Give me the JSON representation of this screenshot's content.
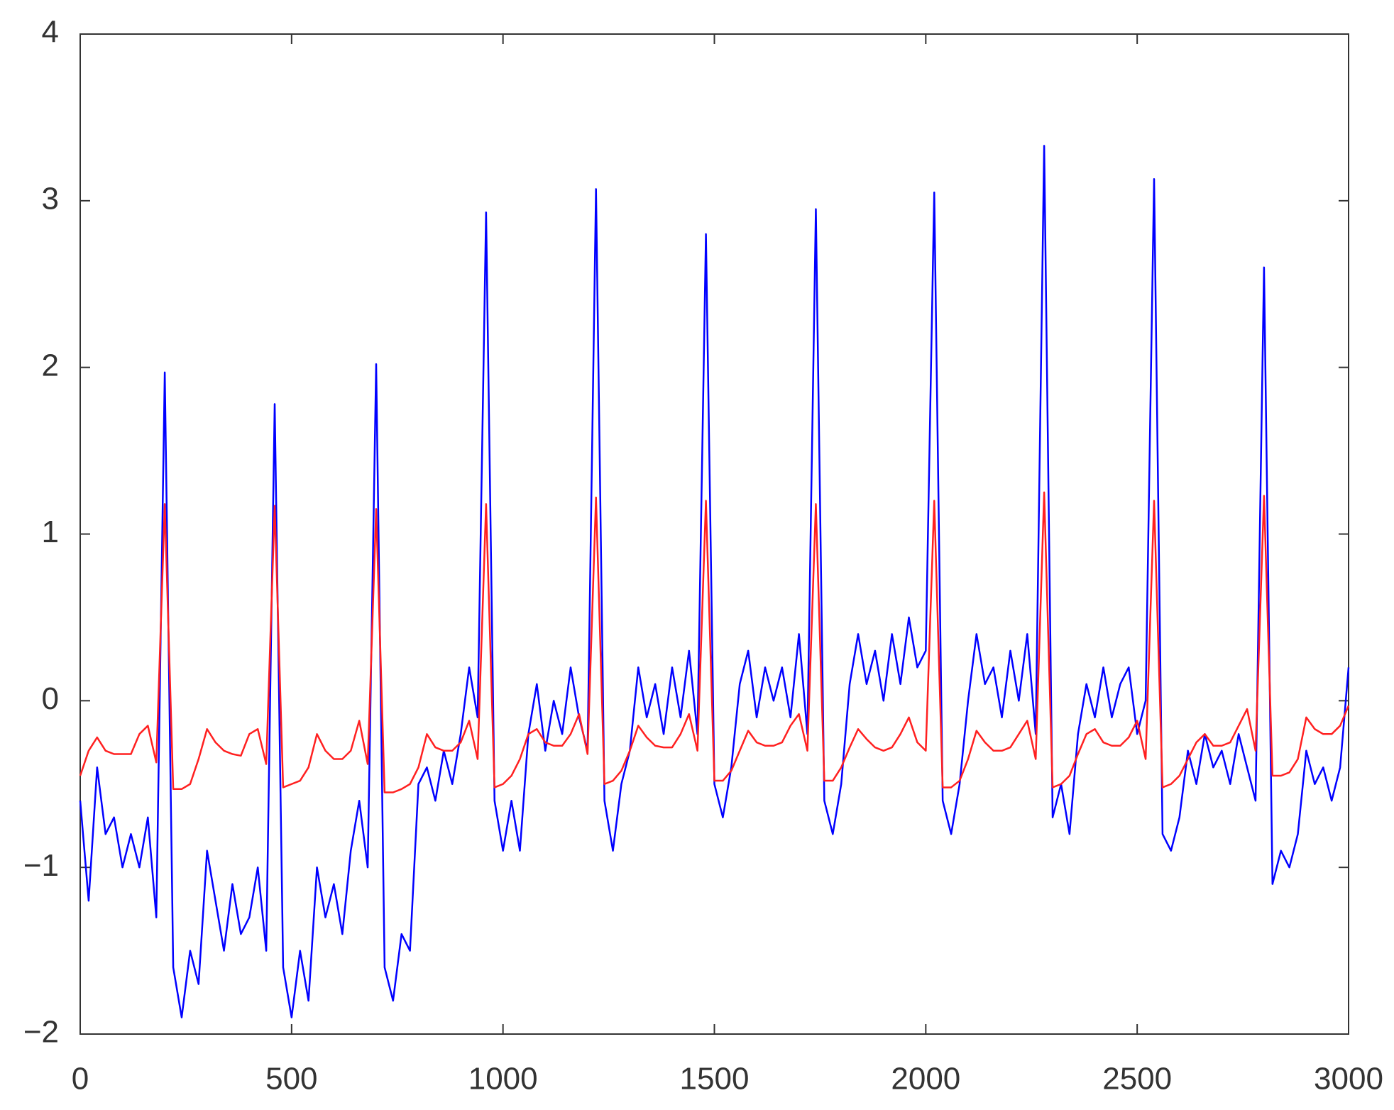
{
  "chart_data": {
    "type": "line",
    "x": [
      0,
      20,
      40,
      60,
      80,
      100,
      120,
      140,
      160,
      180,
      200,
      220,
      240,
      260,
      280,
      300,
      320,
      340,
      360,
      380,
      400,
      420,
      440,
      460,
      480,
      500,
      520,
      540,
      560,
      580,
      600,
      620,
      640,
      660,
      680,
      700,
      720,
      740,
      760,
      780,
      800,
      820,
      840,
      860,
      880,
      900,
      920,
      940,
      960,
      980,
      1000,
      1020,
      1040,
      1060,
      1080,
      1100,
      1120,
      1140,
      1160,
      1180,
      1200,
      1220,
      1240,
      1260,
      1280,
      1300,
      1320,
      1340,
      1360,
      1380,
      1400,
      1420,
      1440,
      1460,
      1480,
      1500,
      1520,
      1540,
      1560,
      1580,
      1600,
      1620,
      1640,
      1660,
      1680,
      1700,
      1720,
      1740,
      1760,
      1780,
      1800,
      1820,
      1840,
      1860,
      1880,
      1900,
      1920,
      1940,
      1960,
      1980,
      2000,
      2020,
      2040,
      2060,
      2080,
      2100,
      2120,
      2140,
      2160,
      2180,
      2200,
      2220,
      2240,
      2260,
      2280,
      2300,
      2320,
      2340,
      2360,
      2380,
      2400,
      2420,
      2440,
      2460,
      2480,
      2500,
      2520,
      2540,
      2560,
      2580,
      2600,
      2620,
      2640,
      2660,
      2680,
      2700,
      2720,
      2740,
      2760,
      2780,
      2800,
      2820,
      2840,
      2860,
      2880,
      2900,
      2920,
      2940,
      2960,
      2980,
      3000
    ],
    "series": [
      {
        "color": "#0000ff",
        "values": [
          -0.6,
          -1.2,
          -0.4,
          -0.8,
          -0.7,
          -1.0,
          -0.8,
          -1.0,
          -0.7,
          -1.3,
          1.97,
          -1.6,
          -1.9,
          -1.5,
          -1.7,
          -0.9,
          -1.2,
          -1.5,
          -1.1,
          -1.4,
          -1.3,
          -1.0,
          -1.5,
          1.78,
          -1.6,
          -1.9,
          -1.5,
          -1.8,
          -1.0,
          -1.3,
          -1.1,
          -1.4,
          -0.9,
          -0.6,
          -1.0,
          2.02,
          -1.6,
          -1.8,
          -1.4,
          -1.5,
          -0.5,
          -0.4,
          -0.6,
          -0.3,
          -0.5,
          -0.2,
          0.2,
          -0.1,
          2.93,
          -0.6,
          -0.9,
          -0.6,
          -0.9,
          -0.2,
          0.1,
          -0.3,
          0.0,
          -0.2,
          0.2,
          -0.1,
          -0.3,
          3.07,
          -0.6,
          -0.9,
          -0.5,
          -0.3,
          0.2,
          -0.1,
          0.1,
          -0.2,
          0.2,
          -0.1,
          0.3,
          -0.2,
          2.8,
          -0.5,
          -0.7,
          -0.4,
          0.1,
          0.3,
          -0.1,
          0.2,
          0.0,
          0.2,
          -0.1,
          0.4,
          -0.2,
          2.95,
          -0.6,
          -0.8,
          -0.5,
          0.1,
          0.4,
          0.1,
          0.3,
          0.0,
          0.4,
          0.1,
          0.5,
          0.2,
          0.3,
          3.05,
          -0.6,
          -0.8,
          -0.5,
          0.0,
          0.4,
          0.1,
          0.2,
          -0.1,
          0.3,
          0.0,
          0.4,
          -0.2,
          3.33,
          -0.7,
          -0.5,
          -0.8,
          -0.2,
          0.1,
          -0.1,
          0.2,
          -0.1,
          0.1,
          0.2,
          -0.2,
          0.0,
          3.13,
          -0.8,
          -0.9,
          -0.7,
          -0.3,
          -0.5,
          -0.2,
          -0.4,
          -0.3,
          -0.5,
          -0.2,
          -0.4,
          -0.6,
          2.6,
          -1.1,
          -0.9,
          -1.0,
          -0.8,
          -0.3,
          -0.5,
          -0.4,
          -0.6,
          -0.4,
          0.2
        ]
      },
      {
        "color": "#ff2020",
        "values": [
          -0.45,
          -0.3,
          -0.22,
          -0.3,
          -0.32,
          -0.32,
          -0.32,
          -0.2,
          -0.15,
          -0.37,
          1.18,
          -0.53,
          -0.53,
          -0.5,
          -0.35,
          -0.17,
          -0.25,
          -0.3,
          -0.32,
          -0.33,
          -0.2,
          -0.17,
          -0.38,
          1.17,
          -0.52,
          -0.5,
          -0.48,
          -0.4,
          -0.2,
          -0.3,
          -0.35,
          -0.35,
          -0.3,
          -0.12,
          -0.38,
          1.15,
          -0.55,
          -0.55,
          -0.53,
          -0.5,
          -0.4,
          -0.2,
          -0.28,
          -0.3,
          -0.3,
          -0.25,
          -0.12,
          -0.35,
          1.18,
          -0.52,
          -0.5,
          -0.45,
          -0.35,
          -0.2,
          -0.17,
          -0.25,
          -0.27,
          -0.27,
          -0.2,
          -0.08,
          -0.32,
          1.22,
          -0.5,
          -0.48,
          -0.42,
          -0.3,
          -0.15,
          -0.22,
          -0.27,
          -0.28,
          -0.28,
          -0.2,
          -0.08,
          -0.3,
          1.2,
          -0.48,
          -0.48,
          -0.42,
          -0.3,
          -0.18,
          -0.25,
          -0.27,
          -0.27,
          -0.25,
          -0.15,
          -0.08,
          -0.3,
          1.18,
          -0.48,
          -0.48,
          -0.4,
          -0.28,
          -0.17,
          -0.23,
          -0.28,
          -0.3,
          -0.28,
          -0.2,
          -0.1,
          -0.25,
          -0.3,
          1.2,
          -0.52,
          -0.52,
          -0.48,
          -0.35,
          -0.18,
          -0.25,
          -0.3,
          -0.3,
          -0.28,
          -0.2,
          -0.12,
          -0.35,
          1.25,
          -0.52,
          -0.5,
          -0.45,
          -0.32,
          -0.2,
          -0.17,
          -0.25,
          -0.27,
          -0.27,
          -0.22,
          -0.12,
          -0.35,
          1.2,
          -0.52,
          -0.5,
          -0.45,
          -0.35,
          -0.25,
          -0.2,
          -0.27,
          -0.27,
          -0.25,
          -0.15,
          -0.05,
          -0.3,
          1.23,
          -0.45,
          -0.45,
          -0.43,
          -0.35,
          -0.1,
          -0.17,
          -0.2,
          -0.2,
          -0.15,
          -0.03
        ]
      }
    ],
    "xlim": [
      0,
      3000
    ],
    "xticks": [
      0,
      500,
      1000,
      1500,
      2000,
      2500,
      3000
    ],
    "ylim": [
      -2,
      4
    ],
    "yticks": [
      {
        "value": -2,
        "label": "−2"
      },
      {
        "value": -1,
        "label": "−1"
      },
      0,
      1,
      2,
      3,
      4
    ],
    "grid": false
  }
}
